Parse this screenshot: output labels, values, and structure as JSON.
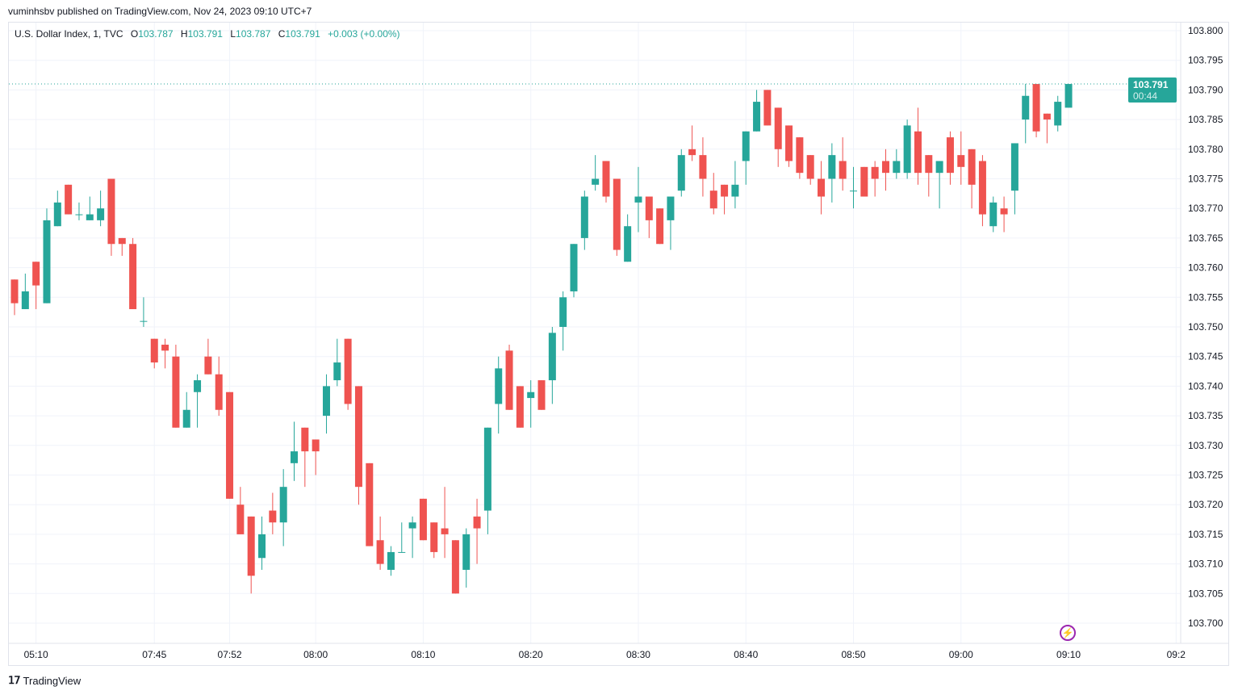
{
  "publisher": "vuminhsbv published on TradingView.com, Nov 24, 2023 09:10 UTC+7",
  "legend": {
    "symbol": "U.S. Dollar Index, 1, TVC",
    "o_label": "O",
    "o": "103.787",
    "h_label": "H",
    "h": "103.791",
    "l_label": "L",
    "l": "103.787",
    "c_label": "C",
    "c": "103.791",
    "change": "+0.003 (+0.00%)"
  },
  "last_price": {
    "price": "103.791",
    "countdown": "00:44"
  },
  "footer": {
    "brand": "TradingView",
    "logo": "17"
  },
  "icons": {
    "bolt": "lightning-icon"
  },
  "colors": {
    "up": "#26a69a",
    "down": "#ef5350",
    "grid": "#f0f3fa",
    "alert": "#9c27b0"
  },
  "chart_data": {
    "type": "candlestick",
    "title": "U.S. Dollar Index, 1, TVC",
    "ylim": [
      103.6965,
      103.805
    ],
    "y_ticks": [
      "103.800",
      "103.795",
      "103.790",
      "103.785",
      "103.780",
      "103.775",
      "103.770",
      "103.765",
      "103.760",
      "103.755",
      "103.750",
      "103.745",
      "103.740",
      "103.735",
      "103.730",
      "103.725",
      "103.720",
      "103.715",
      "103.710",
      "103.705",
      "103.700"
    ],
    "x_ticks": [
      {
        "index": 2,
        "label": "05:10"
      },
      {
        "index": 13,
        "label": "07:45"
      },
      {
        "index": 20,
        "label": "07:52"
      },
      {
        "index": 28,
        "label": "08:00"
      },
      {
        "index": 38,
        "label": "08:10"
      },
      {
        "index": 48,
        "label": "08:20"
      },
      {
        "index": 58,
        "label": "08:30"
      },
      {
        "index": 68,
        "label": "08:40"
      },
      {
        "index": 78,
        "label": "08:50"
      },
      {
        "index": 88,
        "label": "09:00"
      },
      {
        "index": 98,
        "label": "09:10"
      },
      {
        "index": 108,
        "label": "09:2"
      }
    ],
    "ohlc": [
      [
        103.758,
        103.758,
        103.752,
        103.754
      ],
      [
        103.753,
        103.759,
        103.753,
        103.756
      ],
      [
        103.761,
        103.761,
        103.753,
        103.757
      ],
      [
        103.754,
        103.77,
        103.754,
        103.768
      ],
      [
        103.767,
        103.773,
        103.767,
        103.771
      ],
      [
        103.774,
        103.774,
        103.769,
        103.769
      ],
      [
        103.769,
        103.771,
        103.768,
        103.769
      ],
      [
        103.768,
        103.772,
        103.768,
        103.769
      ],
      [
        103.768,
        103.773,
        103.767,
        103.77
      ],
      [
        103.775,
        103.775,
        103.762,
        103.764
      ],
      [
        103.765,
        103.765,
        103.762,
        103.764
      ],
      [
        103.764,
        103.765,
        103.753,
        103.753
      ],
      [
        103.751,
        103.755,
        103.75,
        103.751
      ],
      [
        103.748,
        103.748,
        103.743,
        103.744
      ],
      [
        103.747,
        103.748,
        103.743,
        103.746
      ],
      [
        103.745,
        103.747,
        103.733,
        103.733
      ],
      [
        103.733,
        103.739,
        103.733,
        103.736
      ],
      [
        103.739,
        103.742,
        103.733,
        103.741
      ],
      [
        103.745,
        103.748,
        103.742,
        103.742
      ],
      [
        103.742,
        103.745,
        103.735,
        103.736
      ],
      [
        103.739,
        103.739,
        103.721,
        103.721
      ],
      [
        103.72,
        103.723,
        103.715,
        103.715
      ],
      [
        103.718,
        103.718,
        103.705,
        103.708
      ],
      [
        103.711,
        103.718,
        103.709,
        103.715
      ],
      [
        103.719,
        103.722,
        103.715,
        103.717
      ],
      [
        103.717,
        103.726,
        103.713,
        103.723
      ],
      [
        103.727,
        103.734,
        103.724,
        103.729
      ],
      [
        103.733,
        103.733,
        103.723,
        103.729
      ],
      [
        103.731,
        103.731,
        103.725,
        103.729
      ],
      [
        103.735,
        103.742,
        103.732,
        103.74
      ],
      [
        103.741,
        103.748,
        103.74,
        103.744
      ],
      [
        103.748,
        103.748,
        103.736,
        103.737
      ],
      [
        103.74,
        103.74,
        103.72,
        103.723
      ],
      [
        103.727,
        103.727,
        103.713,
        103.713
      ],
      [
        103.714,
        103.718,
        103.709,
        103.71
      ],
      [
        103.709,
        103.713,
        103.708,
        103.712
      ],
      [
        103.712,
        103.717,
        103.712,
        103.712
      ],
      [
        103.716,
        103.718,
        103.711,
        103.717
      ],
      [
        103.721,
        103.721,
        103.714,
        103.714
      ],
      [
        103.717,
        103.717,
        103.711,
        103.712
      ],
      [
        103.716,
        103.723,
        103.711,
        103.715
      ],
      [
        103.714,
        103.714,
        103.705,
        103.705
      ],
      [
        103.709,
        103.716,
        103.706,
        103.715
      ],
      [
        103.718,
        103.721,
        103.71,
        103.716
      ],
      [
        103.719,
        103.733,
        103.715,
        103.733
      ],
      [
        103.737,
        103.745,
        103.732,
        103.743
      ],
      [
        103.746,
        103.747,
        103.736,
        103.736
      ],
      [
        103.74,
        103.74,
        103.733,
        103.733
      ],
      [
        103.738,
        103.741,
        103.733,
        103.739
      ],
      [
        103.741,
        103.741,
        103.736,
        103.736
      ],
      [
        103.741,
        103.75,
        103.737,
        103.749
      ],
      [
        103.75,
        103.756,
        103.746,
        103.755
      ],
      [
        103.756,
        103.764,
        103.755,
        103.764
      ],
      [
        103.765,
        103.773,
        103.763,
        103.772
      ],
      [
        103.774,
        103.779,
        103.773,
        103.775
      ],
      [
        103.778,
        103.778,
        103.771,
        103.772
      ],
      [
        103.775,
        103.775,
        103.762,
        103.763
      ],
      [
        103.761,
        103.769,
        103.761,
        103.767
      ],
      [
        103.771,
        103.777,
        103.766,
        103.772
      ],
      [
        103.772,
        103.772,
        103.765,
        103.768
      ],
      [
        103.77,
        103.77,
        103.764,
        103.764
      ],
      [
        103.768,
        103.772,
        103.763,
        103.772
      ],
      [
        103.773,
        103.78,
        103.772,
        103.779
      ],
      [
        103.78,
        103.784,
        103.778,
        103.779
      ],
      [
        103.779,
        103.782,
        103.772,
        103.775
      ],
      [
        103.773,
        103.776,
        103.769,
        103.77
      ],
      [
        103.774,
        103.774,
        103.769,
        103.772
      ],
      [
        103.772,
        103.778,
        103.77,
        103.774
      ],
      [
        103.778,
        103.783,
        103.774,
        103.783
      ],
      [
        103.783,
        103.79,
        103.783,
        103.788
      ],
      [
        103.79,
        103.79,
        103.784,
        103.784
      ],
      [
        103.787,
        103.787,
        103.777,
        103.78
      ],
      [
        103.784,
        103.784,
        103.777,
        103.778
      ],
      [
        103.782,
        103.782,
        103.775,
        103.776
      ],
      [
        103.779,
        103.779,
        103.774,
        103.775
      ],
      [
        103.775,
        103.778,
        103.769,
        103.772
      ],
      [
        103.775,
        103.781,
        103.771,
        103.779
      ],
      [
        103.778,
        103.782,
        103.773,
        103.775
      ],
      [
        103.773,
        103.777,
        103.77,
        103.773
      ],
      [
        103.777,
        103.777,
        103.772,
        103.772
      ],
      [
        103.777,
        103.778,
        103.772,
        103.775
      ],
      [
        103.778,
        103.78,
        103.773,
        103.776
      ],
      [
        103.776,
        103.78,
        103.775,
        103.778
      ],
      [
        103.776,
        103.785,
        103.775,
        103.784
      ],
      [
        103.783,
        103.787,
        103.774,
        103.776
      ],
      [
        103.779,
        103.779,
        103.772,
        103.776
      ],
      [
        103.776,
        103.778,
        103.77,
        103.778
      ],
      [
        103.782,
        103.783,
        103.774,
        103.776
      ],
      [
        103.779,
        103.783,
        103.774,
        103.777
      ],
      [
        103.78,
        103.78,
        103.77,
        103.774
      ],
      [
        103.778,
        103.779,
        103.767,
        103.769
      ],
      [
        103.767,
        103.772,
        103.766,
        103.771
      ],
      [
        103.77,
        103.772,
        103.766,
        103.769
      ],
      [
        103.773,
        103.781,
        103.769,
        103.781
      ],
      [
        103.785,
        103.791,
        103.781,
        103.789
      ],
      [
        103.791,
        103.791,
        103.782,
        103.783
      ],
      [
        103.786,
        103.786,
        103.781,
        103.785
      ],
      [
        103.784,
        103.789,
        103.783,
        103.788
      ],
      [
        103.787,
        103.791,
        103.787,
        103.791
      ]
    ]
  }
}
